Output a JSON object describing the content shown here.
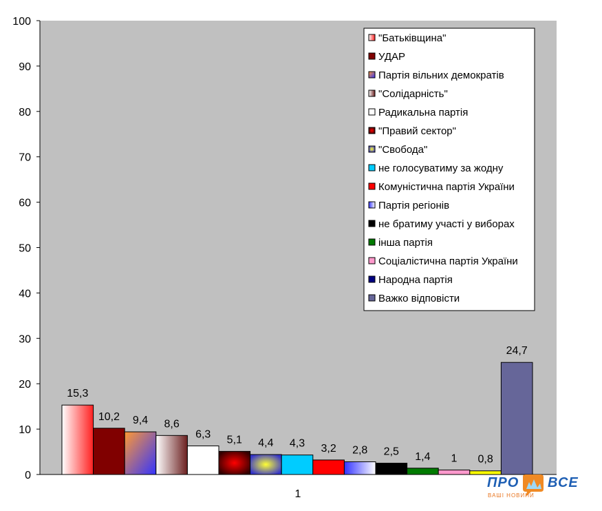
{
  "chart_data": {
    "type": "bar",
    "categories": [
      "1"
    ],
    "ylim": [
      0,
      100
    ],
    "yticks": [
      0,
      10,
      20,
      30,
      40,
      50,
      60,
      70,
      80,
      90,
      100
    ],
    "grid": false,
    "legend_position": "top-right",
    "series": [
      {
        "name": "\"Батьківщина\"",
        "value": 15.3,
        "label": "15,3",
        "color": "#ff4d4d",
        "fill": "grad-white-red"
      },
      {
        "name": "УДАР",
        "value": 10.2,
        "label": "10,2",
        "color": "#800000",
        "fill": "solid"
      },
      {
        "name": "Партія вільних демократів",
        "value": 9.4,
        "label": "9,4",
        "color": "#9966cc",
        "fill": "grad-orange-blue"
      },
      {
        "name": "\"Солідарність\"",
        "value": 8.6,
        "label": "8,6",
        "color": "#8b3a3a",
        "fill": "grad-white-brown"
      },
      {
        "name": "Радикальна партія",
        "value": 6.3,
        "label": "6,3",
        "color": "#ffffff",
        "fill": "solid"
      },
      {
        "name": "\"Правий сектор\"",
        "value": 5.1,
        "label": "5,1",
        "color": "#cc0000",
        "fill": "grad-radial-red"
      },
      {
        "name": "\"Свобода\"",
        "value": 4.4,
        "label": "4,4",
        "color": "#3333cc",
        "fill": "grad-radial-yellow"
      },
      {
        "name": "не голосуватиму за жодну",
        "value": 4.3,
        "label": "4,3",
        "color": "#00ccff",
        "fill": "solid"
      },
      {
        "name": "Комуністична партія України",
        "value": 3.2,
        "label": "3,2",
        "color": "#ff0000",
        "fill": "solid"
      },
      {
        "name": "Партія регіонів",
        "value": 2.8,
        "label": "2,8",
        "color": "#3333ff",
        "fill": "grad-blue-white"
      },
      {
        "name": "не братиму участі у виборах",
        "value": 2.5,
        "label": "2,5",
        "color": "#000000",
        "fill": "solid"
      },
      {
        "name": "інша партія",
        "value": 1.4,
        "label": "1,4",
        "color": "#007a00",
        "fill": "solid"
      },
      {
        "name": "Соціалістична партія України",
        "value": 1.0,
        "label": "1",
        "color": "#ff99cc",
        "fill": "solid"
      },
      {
        "name": "Народна партія",
        "value": 0.8,
        "label": "0,8",
        "color": "#ffff00",
        "fill": "solid",
        "legend_color": "#000080"
      },
      {
        "name": "Важко відповісти",
        "value": 24.7,
        "label": "24,7",
        "color": "#666699",
        "fill": "solid"
      }
    ]
  },
  "colors": {
    "plot_background": "#c0c0c0",
    "legend_background": "#ffffff"
  },
  "logo": {
    "word_left": "ПРО",
    "word_right": "ВСЕ",
    "tagline": "ВАШІ НОВИНИ"
  }
}
